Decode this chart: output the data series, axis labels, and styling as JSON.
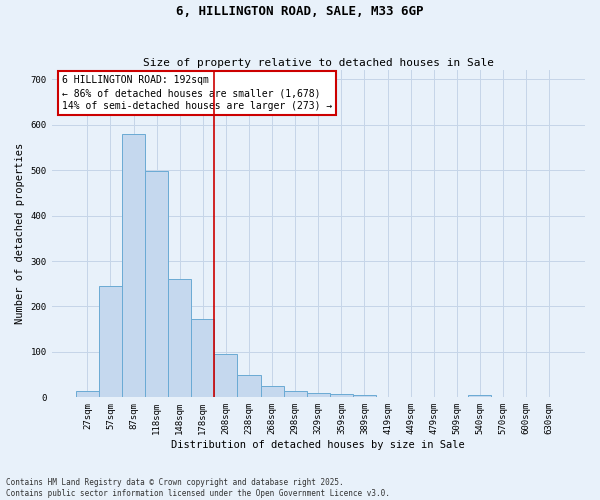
{
  "title": "6, HILLINGTON ROAD, SALE, M33 6GP",
  "subtitle": "Size of property relative to detached houses in Sale",
  "xlabel": "Distribution of detached houses by size in Sale",
  "ylabel": "Number of detached properties",
  "categories": [
    "27sqm",
    "57sqm",
    "87sqm",
    "118sqm",
    "148sqm",
    "178sqm",
    "208sqm",
    "238sqm",
    "268sqm",
    "298sqm",
    "329sqm",
    "359sqm",
    "389sqm",
    "419sqm",
    "449sqm",
    "479sqm",
    "509sqm",
    "540sqm",
    "570sqm",
    "600sqm",
    "630sqm"
  ],
  "values": [
    13,
    245,
    580,
    498,
    260,
    173,
    95,
    50,
    25,
    13,
    10,
    8,
    5,
    0,
    0,
    0,
    0,
    5,
    0,
    0,
    0
  ],
  "bar_color": "#c5d8ee",
  "bar_edge_color": "#6aaad4",
  "vline_x": 5.5,
  "vline_color": "#cc0000",
  "annotation_title": "6 HILLINGTON ROAD: 192sqm",
  "annotation_line2": "← 86% of detached houses are smaller (1,678)",
  "annotation_line3": "14% of semi-detached houses are larger (273) →",
  "annotation_box_color": "#cc0000",
  "ylim": [
    0,
    720
  ],
  "yticks": [
    0,
    100,
    200,
    300,
    400,
    500,
    600,
    700
  ],
  "footnote1": "Contains HM Land Registry data © Crown copyright and database right 2025.",
  "footnote2": "Contains public sector information licensed under the Open Government Licence v3.0.",
  "bg_color": "#e8f1fa",
  "plot_bg_color": "#e8f1fa",
  "grid_color": "#c5d5e8",
  "title_fontsize": 9,
  "subtitle_fontsize": 8,
  "axis_label_fontsize": 7.5,
  "tick_fontsize": 6.5,
  "annotation_fontsize": 7,
  "footnote_fontsize": 5.5
}
